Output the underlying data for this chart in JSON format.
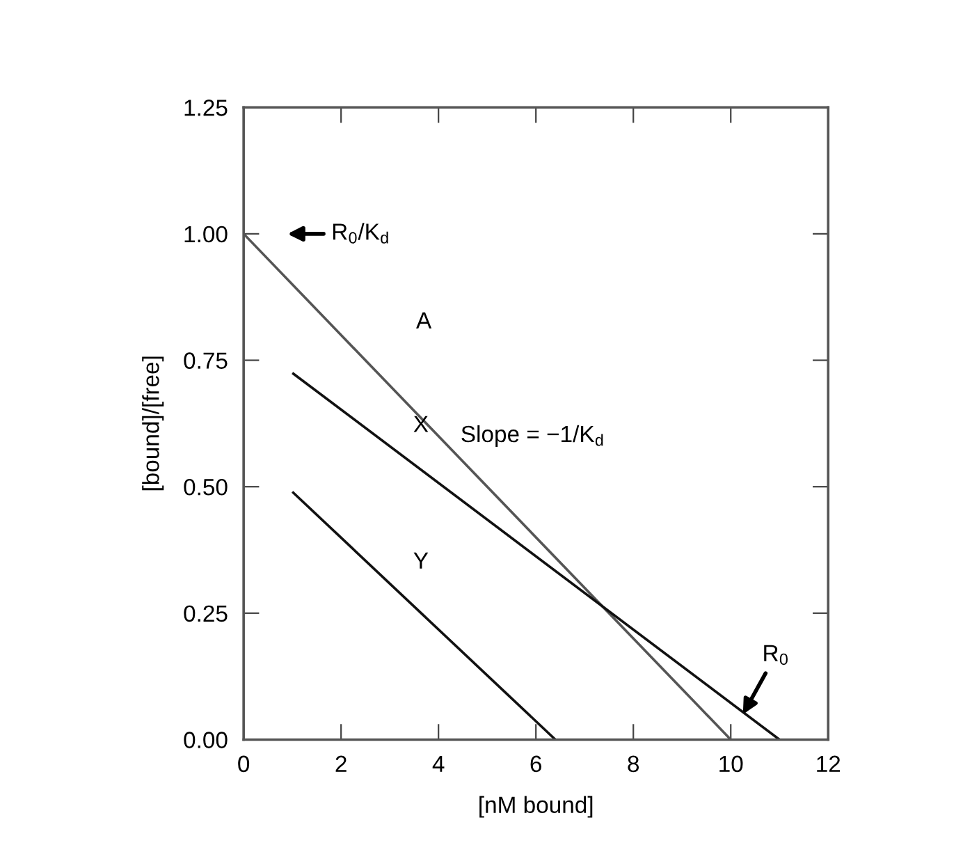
{
  "chart_data": {
    "type": "line",
    "xlabel": "[nM bound]",
    "ylabel": "[bound]/[free]",
    "series": [
      {
        "color": "#555555",
        "x": [
          0,
          10
        ],
        "values": [
          1.0,
          0
        ]
      },
      {
        "color": "#111111",
        "x": [
          1,
          11
        ],
        "values": [
          0.725,
          0
        ]
      },
      {
        "color": "#111111",
        "x": [
          1,
          6.4
        ],
        "values": [
          0.49,
          0
        ]
      }
    ],
    "xlim": [
      0,
      12
    ],
    "xticks": [
      0,
      2,
      4,
      6,
      8,
      10,
      12
    ],
    "ylim": [
      0,
      1.25
    ],
    "yticks": [
      {
        "value": 0,
        "label": "0.00"
      },
      {
        "value": 0.25,
        "label": "0.25"
      },
      {
        "value": 0.5,
        "label": "0.50"
      },
      {
        "value": 0.75,
        "label": "0.75"
      },
      {
        "value": 1.0,
        "label": "1.00"
      },
      {
        "value": 1.25,
        "label": "1.25"
      }
    ],
    "grid": false,
    "legend": false,
    "marker": "none",
    "line_style": "solid",
    "annotations": [
      "R$_{0}$/K$_{d}$",
      "A",
      "X",
      "Slope = −1/K$_{d}$",
      "Y",
      {
        "text": "R$_{0}$",
        "x": 10.25,
        "y": 0.05
      }
    ]
  }
}
